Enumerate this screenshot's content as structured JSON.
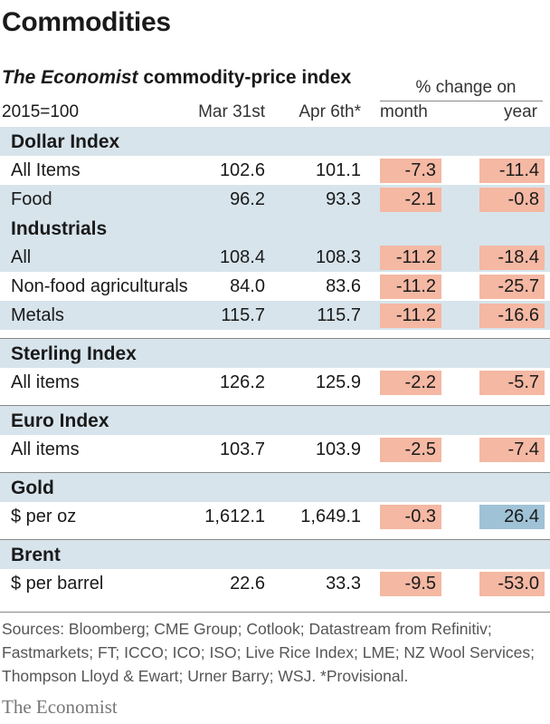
{
  "title": "Commodities",
  "subtitle_italic": "The Economist",
  "subtitle_rest": " commodity-price index",
  "pct_change_header": "% change on",
  "columns": {
    "base": "2015=100",
    "mar": "Mar 31st",
    "apr": "Apr 6th*",
    "month": "month",
    "year": "year"
  },
  "sections": [
    {
      "name": "Dollar Index",
      "rows": [
        {
          "label": "All Items",
          "mar": "102.6",
          "apr": "101.1",
          "month": "-7.3",
          "year": "-11.4"
        },
        {
          "label": "Food",
          "mar": "96.2",
          "apr": "93.3",
          "month": "-2.1",
          "year": "-0.8"
        }
      ]
    },
    {
      "name": "Industrials",
      "rows": [
        {
          "label": "All",
          "mar": "108.4",
          "apr": "108.3",
          "month": "-11.2",
          "year": "-18.4"
        },
        {
          "label": "Non-food agriculturals",
          "mar": "84.0",
          "apr": "83.6",
          "month": "-11.2",
          "year": "-25.7"
        },
        {
          "label": "Metals",
          "mar": "115.7",
          "apr": "115.7",
          "month": "-11.2",
          "year": "-16.6"
        }
      ]
    },
    {
      "name": "Sterling Index",
      "rows": [
        {
          "label": "All items",
          "mar": "126.2",
          "apr": "125.9",
          "month": "-2.2",
          "year": "-5.7"
        }
      ]
    },
    {
      "name": "Euro Index",
      "rows": [
        {
          "label": "All items",
          "mar": "103.7",
          "apr": "103.9",
          "month": "-2.5",
          "year": "-7.4"
        }
      ]
    },
    {
      "name": "Gold",
      "rows": [
        {
          "label": "$ per oz",
          "mar": "1,612.1",
          "apr": "1,649.1",
          "month": "-0.3",
          "year": "26.4"
        }
      ]
    },
    {
      "name": "Brent",
      "rows": [
        {
          "label": "$ per barrel",
          "mar": "22.6",
          "apr": "33.3",
          "month": "-9.5",
          "year": "-53.0"
        }
      ]
    }
  ],
  "sources": "Sources: Bloomberg; CME Group; Cotlook; Datastream from Refinitiv; Fastmarkets; FT; ICCO; ICO; ISO; Live Rice Index; LME; NZ Wool Services; Thompson Lloyd & Ewart; Urner Barry; WSJ. *Provisional.",
  "brand": "The Economist",
  "colors": {
    "section_fill": "#d7e4ec",
    "negative_fill": "#f4b8a3",
    "positive_fill": "#9fc2d6"
  }
}
